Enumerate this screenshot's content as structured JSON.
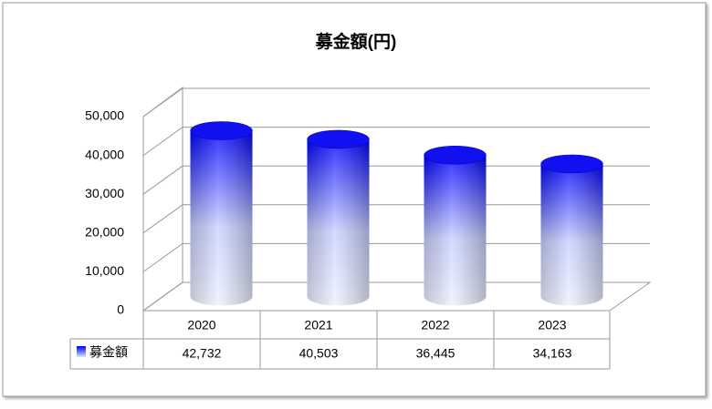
{
  "chart_data": {
    "type": "cylinder",
    "title": "募金額(円)",
    "categories": [
      "2020",
      "2021",
      "2022",
      "2023"
    ],
    "series": [
      {
        "name": "募金額",
        "color": "#0000ff",
        "values": [
          42732,
          40503,
          36445,
          34163
        ],
        "value_labels": [
          "42,732",
          "40,503",
          "36,445",
          "34,163"
        ]
      }
    ],
    "ylim": [
      0,
      50000
    ],
    "yticks": [
      0,
      {
        "value": 10000,
        "label": "10,000"
      },
      {
        "value": 20000,
        "label": "20,000"
      },
      {
        "value": 30000,
        "label": "30,000"
      },
      {
        "value": 40000,
        "label": "40,000"
      },
      {
        "value": 50000,
        "label": "50,000"
      }
    ],
    "grid": true
  }
}
